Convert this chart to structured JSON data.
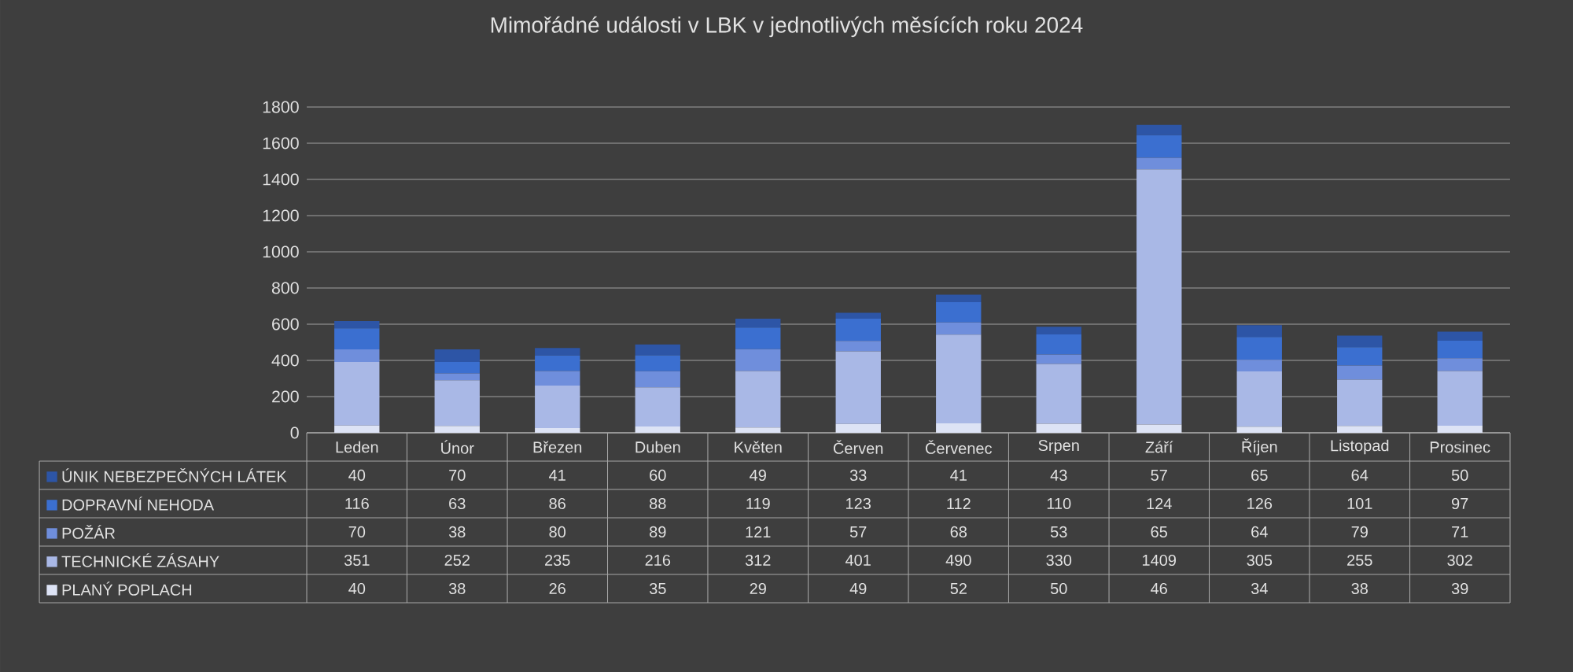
{
  "chart_data": {
    "type": "bar",
    "stacked": true,
    "title": "Mimořádné události v LBK v jednotlivých měsících roku 2024",
    "categories": [
      "Leden",
      "Únor",
      "Březen",
      "Duben",
      "Květen",
      "Červen",
      "Červenec",
      "Srpen",
      "Září",
      "Říjen",
      "Listopad",
      "Prosinec"
    ],
    "series": [
      {
        "name": "PLANÝ POPLACH",
        "color": "#dde3f5",
        "values": [
          40,
          38,
          26,
          35,
          29,
          49,
          52,
          50,
          46,
          34,
          38,
          39
        ]
      },
      {
        "name": "TECHNICKÉ ZÁSAHY",
        "color": "#a9b8e6",
        "values": [
          351,
          252,
          235,
          216,
          312,
          401,
          490,
          330,
          1409,
          305,
          255,
          302
        ]
      },
      {
        "name": "POŽÁR",
        "color": "#6f8edc",
        "values": [
          70,
          38,
          80,
          89,
          121,
          57,
          68,
          53,
          65,
          64,
          79,
          71
        ]
      },
      {
        "name": "DOPRAVNÍ NEHODA",
        "color": "#3b6fd0",
        "values": [
          116,
          63,
          86,
          88,
          119,
          123,
          112,
          110,
          124,
          126,
          101,
          97
        ]
      },
      {
        "name": "ÚNIK NEBEZPEČNÝCH LÁTEK",
        "color": "#2d55a6",
        "values": [
          40,
          70,
          41,
          60,
          49,
          33,
          41,
          43,
          57,
          65,
          64,
          50
        ]
      }
    ],
    "ylim": [
      0,
      1800
    ],
    "yticks": [
      0,
      200,
      400,
      600,
      800,
      1000,
      1200,
      1400,
      1600,
      1800
    ],
    "grid": "y",
    "legend": "bottom",
    "data_labels": true
  }
}
